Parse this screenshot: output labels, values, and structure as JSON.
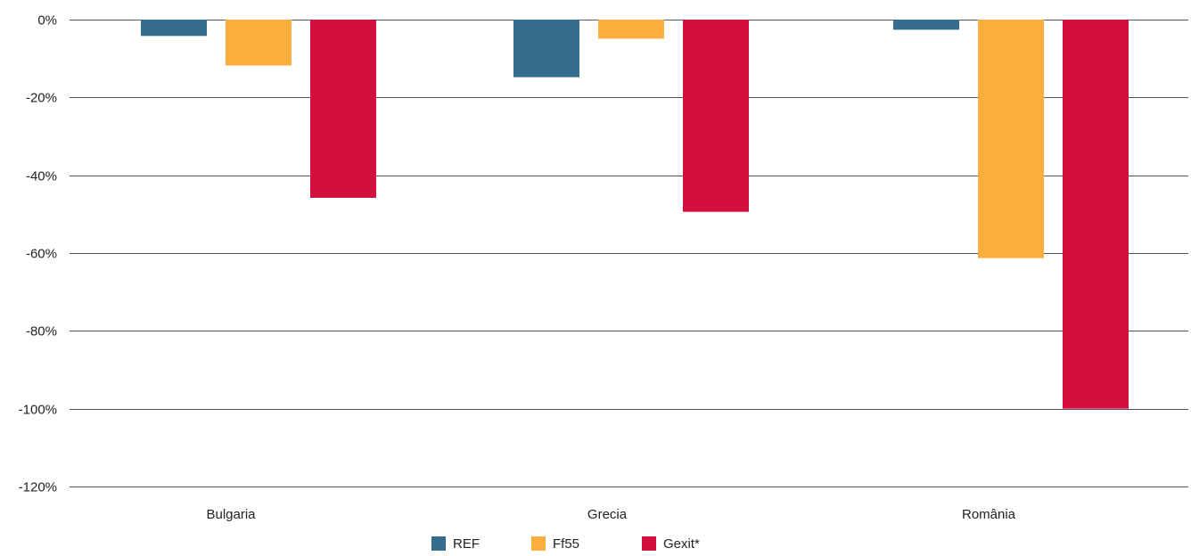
{
  "chart_data": {
    "type": "bar",
    "title": "",
    "xlabel": "",
    "ylabel": "",
    "categories": [
      "Bulgaria",
      "Grecia",
      "România"
    ],
    "series": [
      {
        "name": "REF",
        "color": "#356d8e",
        "values": [
          -4.2,
          -14.8,
          -2.6
        ]
      },
      {
        "name": "Ff55",
        "color": "#f9ae3d",
        "values": [
          -11.8,
          -4.9,
          -61.3
        ]
      },
      {
        "name": "Gexit*",
        "color": "#d30f40",
        "values": [
          -45.8,
          -49.4,
          -100
        ]
      }
    ],
    "y_ticks": [
      0,
      -20,
      -40,
      -60,
      -80,
      -100,
      -120
    ],
    "y_tick_labels": [
      "0%",
      "-20%",
      "-40%",
      "-60%",
      "-80%",
      "-100%",
      "-120%"
    ],
    "ylim": [
      -120,
      0
    ],
    "grid": "horizontal",
    "legend_position": "bottom-center"
  }
}
